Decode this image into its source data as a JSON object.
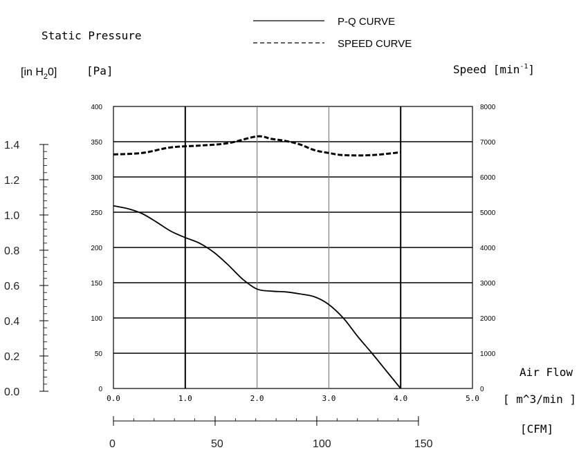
{
  "chart_data": {
    "type": "line",
    "legend": {
      "placement": "top-center",
      "items": [
        {
          "label": "P-Q CURVE",
          "style": "solid"
        },
        {
          "label": "SPEED CURVE",
          "style": "dashed"
        }
      ]
    },
    "labels": {
      "static_pressure": "Static Pressure",
      "inh2o_prefix": "[in H",
      "inh2o_sub": "2",
      "inh2o_suffix": "0]",
      "pa": "[Pa]",
      "speed_prefix": "Speed [min",
      "speed_sup": "-1",
      "speed_suffix": "]",
      "airflow": "Air Flow",
      "m3min": "[ m^3/min ]",
      "cfm": "[CFM]"
    },
    "x_axis": {
      "range": [
        0,
        5
      ],
      "tick_labels": [
        "0.0",
        "1.0",
        "2.0",
        "3.0",
        "4.0",
        "5.0"
      ],
      "tick_values": [
        0,
        1,
        2,
        3,
        4,
        5
      ],
      "major_lines_at": [
        1,
        4
      ]
    },
    "y_left_pa": {
      "range": [
        0,
        400
      ],
      "tick_labels": [
        "0",
        "50",
        "100",
        "150",
        "200",
        "250",
        "300",
        "350",
        "400"
      ],
      "tick_values": [
        0,
        50,
        100,
        150,
        200,
        250,
        300,
        350,
        400
      ]
    },
    "y_right_speed": {
      "range": [
        0,
        8000
      ],
      "tick_labels": [
        "0",
        "1000",
        "2000",
        "3000",
        "4000",
        "5000",
        "6000",
        "7000",
        "8000"
      ],
      "tick_values": [
        0,
        1000,
        2000,
        3000,
        4000,
        5000,
        6000,
        7000,
        8000
      ]
    },
    "y_left_inh2o": {
      "range": [
        0,
        1.6
      ],
      "tick_labels": [
        "0.0",
        "0.2",
        "0.4",
        "0.6",
        "0.8",
        "1.0",
        "1.2",
        "1.4"
      ],
      "tick_values": [
        0,
        0.2,
        0.4,
        0.6,
        0.8,
        1.0,
        1.2,
        1.4
      ],
      "minor_step": 0.04
    },
    "cfm_axis": {
      "tick_labels": [
        "0",
        "50",
        "100",
        "150"
      ],
      "tick_values": [
        0,
        50,
        100,
        150
      ],
      "minor_step": 10,
      "cfm_per_m3min": 35.315
    },
    "grid": true,
    "series": [
      {
        "name": "P-Q CURVE",
        "axis": "left",
        "style": "solid",
        "x": [
          0,
          0.2,
          0.4,
          0.6,
          0.8,
          1.0,
          1.2,
          1.4,
          1.6,
          1.8,
          2.0,
          2.2,
          2.4,
          2.6,
          2.8,
          3.0,
          3.2,
          3.4,
          3.6,
          3.8,
          4.0
        ],
        "y": [
          259,
          255,
          248,
          236,
          223,
          214,
          206,
          193,
          175,
          155,
          141,
          138,
          137,
          134,
          130,
          119,
          100,
          74,
          50,
          25,
          0
        ]
      },
      {
        "name": "SPEED CURVE",
        "axis": "right",
        "style": "dashed",
        "x": [
          0,
          0.4,
          0.8,
          1.2,
          1.6,
          2.0,
          2.2,
          2.4,
          2.6,
          2.8,
          3.0,
          3.2,
          3.6,
          4.0
        ],
        "y": [
          6640,
          6680,
          6840,
          6890,
          6960,
          7150,
          7080,
          7020,
          6920,
          6760,
          6680,
          6620,
          6620,
          6700
        ]
      }
    ]
  }
}
